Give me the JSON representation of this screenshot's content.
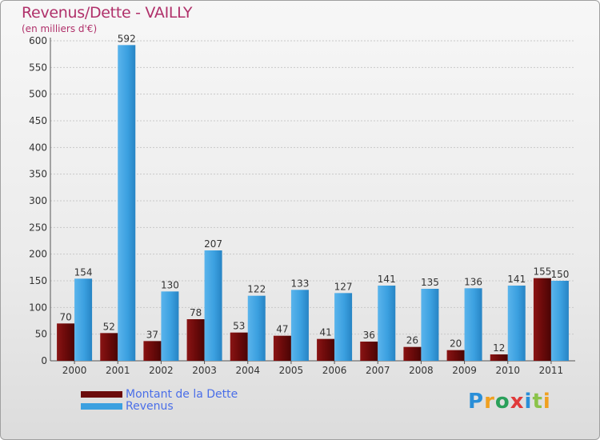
{
  "title": "Revenus/Dette - VAILLY",
  "subtitle": "(en milliers d'€)",
  "legend": {
    "debt_label": "Montant de la Dette",
    "revenue_label": "Revenus"
  },
  "logo": [
    "P",
    "r",
    "o",
    "x",
    "i",
    "t",
    "i"
  ],
  "colors": {
    "debt": "#6b0a0a",
    "revenue": "#3ba0e0",
    "title": "#b0306a"
  },
  "chart_data": {
    "type": "bar",
    "title": "Revenus/Dette - VAILLY",
    "ylabel": "(en milliers d'€)",
    "xlabel": "",
    "ylim": [
      0,
      600
    ],
    "yticks": [
      0,
      50,
      100,
      150,
      200,
      250,
      300,
      350,
      400,
      450,
      500,
      550,
      600
    ],
    "categories": [
      "2000",
      "2001",
      "2002",
      "2003",
      "2004",
      "2005",
      "2006",
      "2007",
      "2008",
      "2009",
      "2010",
      "2011"
    ],
    "series": [
      {
        "name": "Montant de la Dette",
        "values": [
          70,
          52,
          37,
          78,
          53,
          47,
          41,
          36,
          26,
          20,
          12,
          155
        ]
      },
      {
        "name": "Revenus",
        "values": [
          154,
          592,
          130,
          207,
          122,
          133,
          127,
          141,
          135,
          136,
          141,
          150
        ]
      }
    ],
    "legend_position": "bottom-left",
    "grid": true
  }
}
